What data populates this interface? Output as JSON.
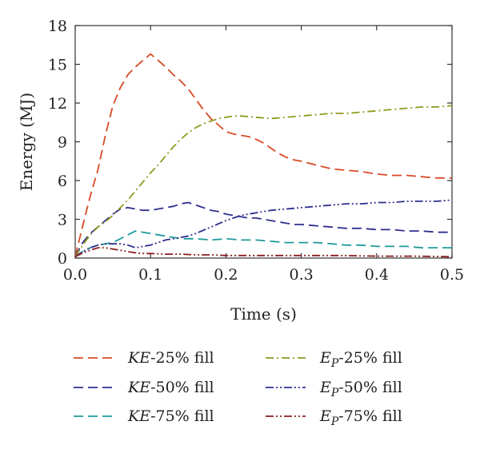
{
  "chart_data": {
    "type": "line",
    "title": "",
    "xlabel": "Time (s)",
    "ylabel": "Energy (MJ)",
    "xlim": [
      0.0,
      0.5
    ],
    "ylim": [
      0,
      18
    ],
    "xticks": [
      0.0,
      0.1,
      0.2,
      0.3,
      0.4,
      0.5
    ],
    "xtick_labels": [
      "0.0",
      "0.1",
      "0.2",
      "0.3",
      "0.4",
      "0.5"
    ],
    "yticks": [
      0,
      3,
      6,
      9,
      12,
      15,
      18
    ],
    "ytick_labels": [
      "0",
      "3",
      "6",
      "9",
      "12",
      "15",
      "18"
    ],
    "grid": false,
    "legend_position": "bottom",
    "series": [
      {
        "name": "KE-25% fill",
        "name_prefix": "KE",
        "name_subscript": "",
        "name_suffix": "-25% fill",
        "color": "#d84a26",
        "dash": "dashed",
        "x": [
          0,
          0.01,
          0.02,
          0.03,
          0.04,
          0.05,
          0.06,
          0.07,
          0.08,
          0.09,
          0.1,
          0.11,
          0.12,
          0.13,
          0.14,
          0.15,
          0.16,
          0.17,
          0.18,
          0.19,
          0.2,
          0.21,
          0.22,
          0.23,
          0.24,
          0.25,
          0.26,
          0.27,
          0.28,
          0.29,
          0.3,
          0.32,
          0.34,
          0.36,
          0.38,
          0.4,
          0.42,
          0.44,
          0.46,
          0.48,
          0.5
        ],
        "y": [
          0.1,
          2.5,
          4.8,
          6.8,
          9.5,
          11.8,
          13.2,
          14.2,
          14.8,
          15.3,
          15.8,
          15.3,
          14.8,
          14.2,
          13.7,
          13.1,
          12.3,
          11.5,
          10.8,
          10.3,
          9.8,
          9.6,
          9.5,
          9.4,
          9.2,
          8.9,
          8.5,
          8.1,
          7.8,
          7.6,
          7.5,
          7.2,
          6.9,
          6.8,
          6.7,
          6.5,
          6.4,
          6.4,
          6.3,
          6.2,
          6.2
        ]
      },
      {
        "name": "KE-50% fill",
        "name_prefix": "KE",
        "name_subscript": "",
        "name_suffix": "-50% fill",
        "color": "#2f2f8f",
        "dash": "dashed",
        "x": [
          0,
          0.01,
          0.02,
          0.03,
          0.04,
          0.05,
          0.06,
          0.07,
          0.08,
          0.09,
          0.1,
          0.11,
          0.12,
          0.13,
          0.14,
          0.15,
          0.16,
          0.17,
          0.18,
          0.19,
          0.2,
          0.21,
          0.22,
          0.23,
          0.24,
          0.25,
          0.26,
          0.27,
          0.28,
          0.29,
          0.3,
          0.32,
          0.34,
          0.36,
          0.38,
          0.4,
          0.42,
          0.44,
          0.46,
          0.48,
          0.5
        ],
        "y": [
          0.1,
          1.2,
          1.9,
          2.4,
          2.9,
          3.4,
          3.8,
          3.9,
          3.8,
          3.7,
          3.7,
          3.8,
          3.9,
          4.0,
          4.2,
          4.3,
          4.1,
          3.9,
          3.7,
          3.6,
          3.4,
          3.3,
          3.2,
          3.1,
          3.1,
          3.0,
          2.9,
          2.8,
          2.7,
          2.6,
          2.6,
          2.5,
          2.4,
          2.3,
          2.3,
          2.2,
          2.2,
          2.1,
          2.1,
          2.0,
          2.0
        ]
      },
      {
        "name": "KE-75% fill",
        "name_prefix": "KE",
        "name_subscript": "",
        "name_suffix": "-75% fill",
        "color": "#1f9a9a",
        "dash": "dashed",
        "x": [
          0,
          0.01,
          0.02,
          0.03,
          0.04,
          0.05,
          0.06,
          0.07,
          0.08,
          0.09,
          0.1,
          0.12,
          0.14,
          0.16,
          0.18,
          0.2,
          0.22,
          0.24,
          0.26,
          0.28,
          0.3,
          0.32,
          0.34,
          0.36,
          0.38,
          0.4,
          0.42,
          0.44,
          0.46,
          0.48,
          0.5
        ],
        "y": [
          0.1,
          0.5,
          0.8,
          1.0,
          1.1,
          1.2,
          1.5,
          1.8,
          2.1,
          2.0,
          1.9,
          1.7,
          1.5,
          1.5,
          1.4,
          1.5,
          1.4,
          1.4,
          1.3,
          1.2,
          1.2,
          1.2,
          1.1,
          1.0,
          1.0,
          0.9,
          0.9,
          0.9,
          0.8,
          0.8,
          0.8
        ]
      },
      {
        "name": "Ep-25% fill",
        "name_prefix": "E",
        "name_subscript": "P",
        "name_suffix": "-25% fill",
        "color": "#8f9a1e",
        "dash": "dashdot",
        "x": [
          0,
          0.01,
          0.02,
          0.03,
          0.04,
          0.05,
          0.06,
          0.07,
          0.08,
          0.09,
          0.1,
          0.11,
          0.12,
          0.13,
          0.14,
          0.15,
          0.16,
          0.17,
          0.18,
          0.19,
          0.2,
          0.21,
          0.22,
          0.24,
          0.26,
          0.28,
          0.3,
          0.32,
          0.34,
          0.36,
          0.38,
          0.4,
          0.42,
          0.44,
          0.46,
          0.48,
          0.5
        ],
        "y": [
          0.1,
          1.0,
          1.8,
          2.4,
          2.8,
          3.3,
          3.9,
          4.5,
          5.2,
          5.9,
          6.6,
          7.2,
          7.9,
          8.6,
          9.2,
          9.7,
          10.1,
          10.4,
          10.6,
          10.8,
          10.9,
          11.0,
          11.0,
          10.9,
          10.8,
          10.9,
          11.0,
          11.1,
          11.2,
          11.2,
          11.3,
          11.4,
          11.5,
          11.6,
          11.7,
          11.7,
          11.8
        ]
      },
      {
        "name": "Ep-50% fill",
        "name_prefix": "E",
        "name_subscript": "P",
        "name_suffix": "-50% fill",
        "color": "#2f2f8f",
        "dash": "dashdotdot",
        "x": [
          0,
          0.01,
          0.02,
          0.03,
          0.04,
          0.05,
          0.06,
          0.07,
          0.08,
          0.09,
          0.1,
          0.11,
          0.12,
          0.13,
          0.14,
          0.15,
          0.16,
          0.18,
          0.2,
          0.22,
          0.24,
          0.26,
          0.28,
          0.3,
          0.32,
          0.34,
          0.36,
          0.38,
          0.4,
          0.42,
          0.44,
          0.46,
          0.48,
          0.5
        ],
        "y": [
          0.1,
          0.5,
          0.8,
          1.0,
          1.1,
          1.1,
          1.1,
          1.0,
          0.8,
          0.9,
          1.0,
          1.2,
          1.4,
          1.5,
          1.6,
          1.7,
          1.9,
          2.4,
          2.9,
          3.3,
          3.5,
          3.7,
          3.8,
          3.9,
          4.0,
          4.1,
          4.2,
          4.2,
          4.3,
          4.3,
          4.4,
          4.4,
          4.4,
          4.5
        ]
      },
      {
        "name": "Ep-75% fill",
        "name_prefix": "E",
        "name_subscript": "P",
        "name_suffix": "-75% fill",
        "color": "#8b1e1e",
        "dash": "dashdotdot",
        "x": [
          0,
          0.01,
          0.02,
          0.03,
          0.04,
          0.05,
          0.06,
          0.07,
          0.08,
          0.09,
          0.1,
          0.12,
          0.14,
          0.16,
          0.18,
          0.2,
          0.25,
          0.3,
          0.35,
          0.4,
          0.45,
          0.5
        ],
        "y": [
          0.1,
          0.4,
          0.6,
          0.8,
          0.8,
          0.7,
          0.6,
          0.5,
          0.4,
          0.35,
          0.35,
          0.3,
          0.3,
          0.25,
          0.25,
          0.2,
          0.2,
          0.2,
          0.2,
          0.15,
          0.15,
          0.1
        ]
      }
    ]
  }
}
